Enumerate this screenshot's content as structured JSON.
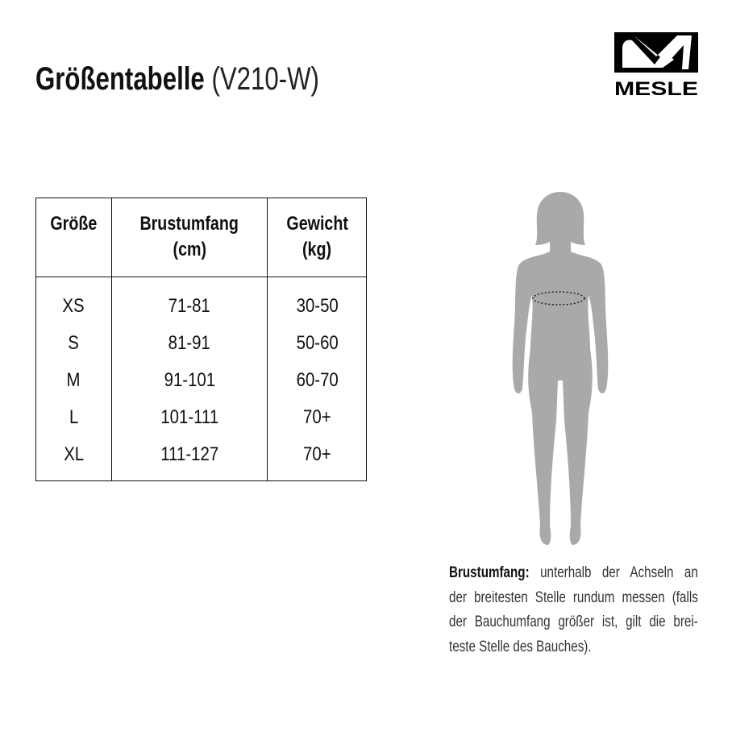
{
  "title": {
    "main": "Größentabelle",
    "sub": "(V210-W)"
  },
  "logo": {
    "text": "MESLE"
  },
  "table": {
    "headers": [
      [
        "Größe"
      ],
      [
        "Brustumfang",
        "(cm)"
      ],
      [
        "Gewicht",
        "(kg)"
      ]
    ],
    "rows": [
      [
        "XS",
        "71-81",
        "30-50"
      ],
      [
        "S",
        "81-91",
        "50-60"
      ],
      [
        "M",
        "91-101",
        "60-70"
      ],
      [
        "L",
        "101-111",
        "70+"
      ],
      [
        "XL",
        "111-127",
        "70+"
      ]
    ]
  },
  "figure": {
    "icon": "female-silhouette-icon",
    "color": "#a9a9a9"
  },
  "description": {
    "label": "Brustumfang:",
    "lines": [
      "unterhalb der Achseln an",
      "der breitesten Stelle rundum messen (falls",
      "der Bauchumfang größer ist, gilt die brei-",
      "teste Stelle des Bauches)."
    ]
  }
}
